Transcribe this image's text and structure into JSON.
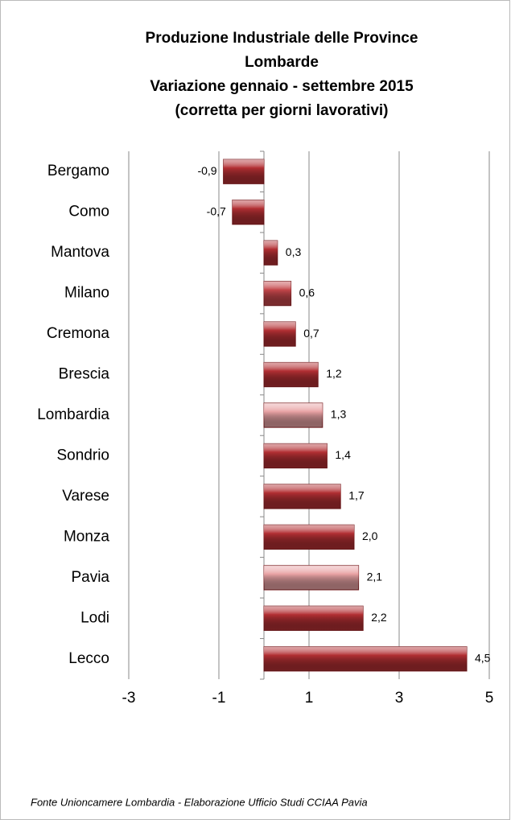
{
  "chart_data": {
    "type": "bar",
    "orientation": "horizontal",
    "title": [
      "Produzione Industriale delle Province",
      "Lombarde",
      "Variazione gennaio - settembre 2015",
      "(corretta per giorni lavorativi)"
    ],
    "categories": [
      "Bergamo",
      "Como",
      "Mantova",
      "Milano",
      "Cremona",
      "Brescia",
      "Lombardia",
      "Sondrio",
      "Varese",
      "Monza",
      "Pavia",
      "Lodi",
      "Lecco"
    ],
    "values": [
      -0.9,
      -0.7,
      0.3,
      0.6,
      0.7,
      1.2,
      1.3,
      1.4,
      1.7,
      2.0,
      2.1,
      2.2,
      4.5
    ],
    "value_labels": [
      "-0,9",
      "-0,7",
      "0,3",
      "0,6",
      "0,7",
      "1,2",
      "1,3",
      "1,4",
      "1,7",
      "2,0",
      "2,1",
      "2,2",
      "4,5"
    ],
    "colors": [
      "#b22f33",
      "#b22f33",
      "#b22f33",
      "#c4464a",
      "#b22f33",
      "#b22f33",
      "#e8a2a4",
      "#b22f33",
      "#b22f33",
      "#b22f33",
      "#e8a2a4",
      "#b22f33",
      "#b22f33"
    ],
    "xlim": [
      -3,
      5
    ],
    "xticks": [
      -3,
      -1,
      1,
      3,
      5
    ],
    "grid": true,
    "source": "Fonte Unioncamere Lombardia - Elaborazione Ufficio Studi CCIAA Pavia"
  }
}
